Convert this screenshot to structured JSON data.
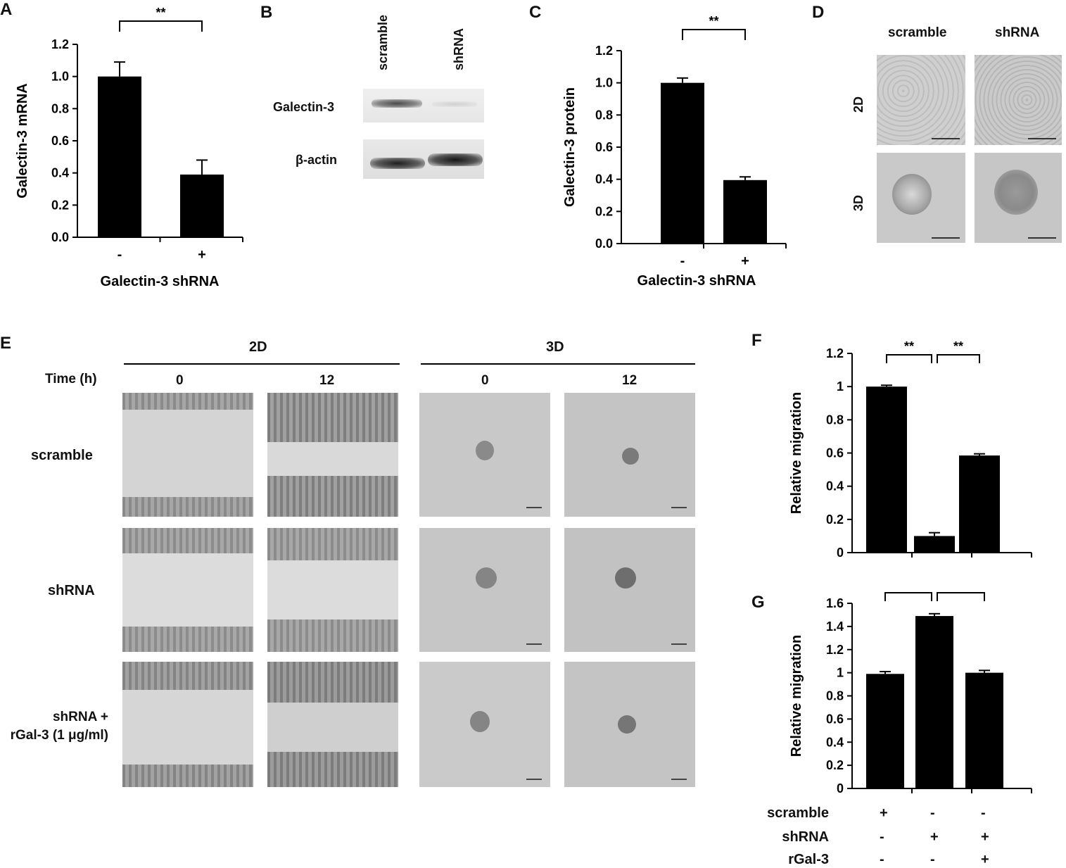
{
  "panels": {
    "A": "A",
    "B": "B",
    "C": "C",
    "D": "D",
    "E": "E",
    "F": "F",
    "G": "G"
  },
  "panelB": {
    "lanes": [
      "scramble",
      "shRNA"
    ],
    "bands": [
      "Galectin-3",
      "β-actin"
    ]
  },
  "panelD": {
    "cols": [
      "scramble",
      "shRNA"
    ],
    "rows": [
      "2D",
      "3D"
    ]
  },
  "panelE": {
    "group_2d": "2D",
    "group_3d": "3D",
    "time_label": "Time (h)",
    "times_2d": [
      "0",
      "12"
    ],
    "times_3d": [
      "0",
      "12"
    ],
    "rows": [
      "scramble",
      "shRNA",
      "shRNA +\nrGal-3 (1 μg/ml)"
    ]
  },
  "panelG": {
    "table_rows": [
      {
        "label": "scramble",
        "signs": [
          "+",
          "-",
          "-"
        ]
      },
      {
        "label": "shRNA",
        "signs": [
          "-",
          "+",
          "+"
        ]
      },
      {
        "label": "rGal-3",
        "signs": [
          "-",
          "-",
          "+"
        ]
      }
    ]
  },
  "chart_data": [
    {
      "id": "A",
      "type": "bar",
      "categories": [
        "-",
        "+"
      ],
      "values": [
        1.0,
        0.39
      ],
      "errors": [
        0.09,
        0.09
      ],
      "xlabel": "Galectin-3 shRNA",
      "ylabel": "Galectin-3 mRNA",
      "ylim": [
        0,
        1.2
      ],
      "yticks": [
        "0.0",
        "0.2",
        "0.4",
        "0.6",
        "0.8",
        "1.0",
        "1.2"
      ],
      "significance": [
        {
          "from": 0,
          "to": 1,
          "label": "**"
        }
      ],
      "bar_color": "#000000"
    },
    {
      "id": "C",
      "type": "bar",
      "categories": [
        "-",
        "+"
      ],
      "values": [
        1.0,
        0.395
      ],
      "errors": [
        0.03,
        0.02
      ],
      "xlabel": "Galectin-3 shRNA",
      "ylabel": "Galectin-3 protein",
      "ylim": [
        0,
        1.2
      ],
      "yticks": [
        "0.0",
        "0.2",
        "0.4",
        "0.6",
        "0.8",
        "1.0",
        "1.2"
      ],
      "significance": [
        {
          "from": 0,
          "to": 1,
          "label": "**"
        }
      ],
      "bar_color": "#000000"
    },
    {
      "id": "F",
      "type": "bar",
      "categories": [
        "1",
        "2",
        "3"
      ],
      "values": [
        1.0,
        0.1,
        0.585
      ],
      "errors": [
        0.008,
        0.02,
        0.01
      ],
      "xlabel": "",
      "ylabel": "Relative migration",
      "ylim": [
        0,
        1.2
      ],
      "yticks": [
        "0",
        "0.2",
        "0.4",
        "0.6",
        "0.8",
        "1",
        "1.2"
      ],
      "significance": [
        {
          "from": 0,
          "to": 1,
          "label": "**"
        },
        {
          "from": 1,
          "to": 2,
          "label": "**"
        }
      ],
      "bar_color": "#000000"
    },
    {
      "id": "G",
      "type": "bar",
      "categories": [
        "1",
        "2",
        "3"
      ],
      "values": [
        0.99,
        1.49,
        1.0
      ],
      "errors": [
        0.02,
        0.02,
        0.02
      ],
      "xlabel": "",
      "ylabel": "Relative migration",
      "ylim": [
        0,
        1.6
      ],
      "yticks": [
        "0",
        "0.2",
        "0.4",
        "0.6",
        "0.8",
        "1",
        "1.2",
        "1.4",
        "1.6"
      ],
      "significance": [
        {
          "from": 0,
          "to": 1,
          "label": "**"
        },
        {
          "from": 1,
          "to": 2,
          "label": "**"
        }
      ],
      "bar_color": "#000000"
    }
  ]
}
